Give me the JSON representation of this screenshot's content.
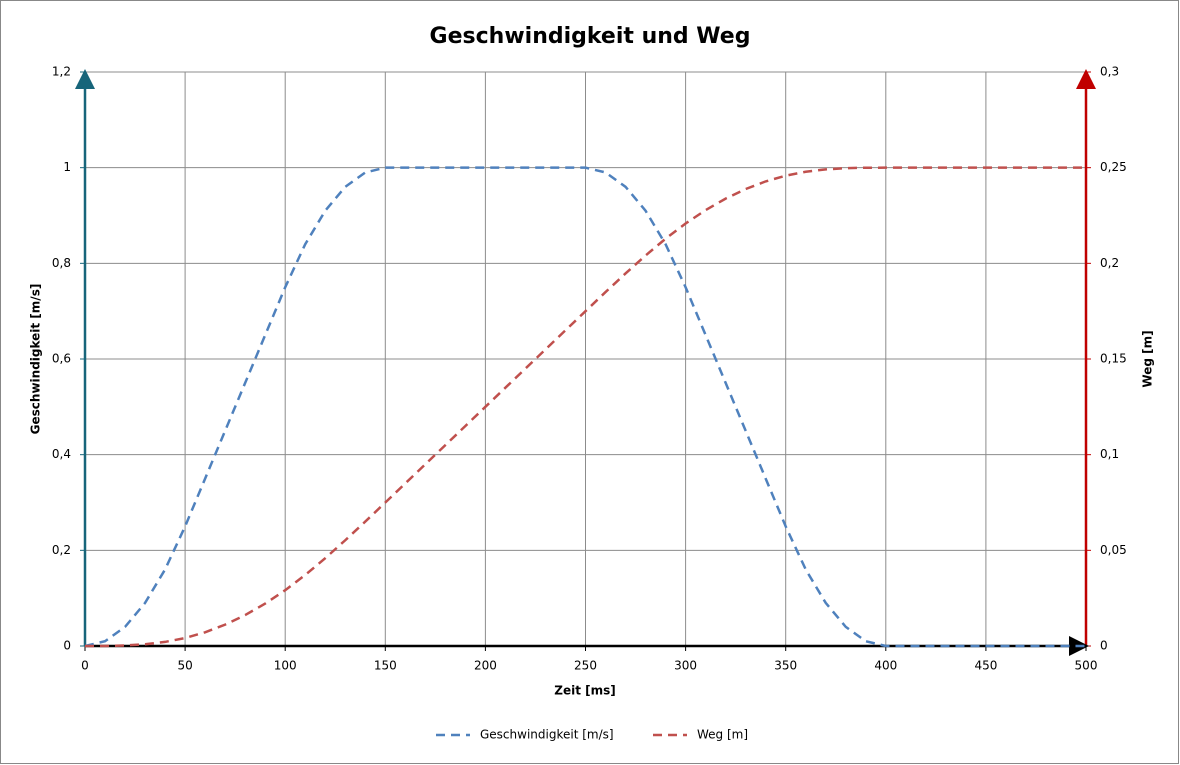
{
  "chart_data": {
    "type": "line",
    "title": "Geschwindigkeit und Weg",
    "x_label": "Zeit [ms]",
    "y_label": "Geschwindigkeit [m/s]",
    "y2_label": "Weg [m]",
    "x": [
      0,
      10,
      20,
      30,
      40,
      50,
      60,
      70,
      80,
      90,
      100,
      110,
      120,
      130,
      140,
      150,
      160,
      170,
      180,
      190,
      200,
      210,
      220,
      230,
      240,
      250,
      260,
      270,
      280,
      290,
      300,
      310,
      320,
      330,
      340,
      350,
      360,
      370,
      380,
      390,
      400,
      410,
      420,
      430,
      440,
      450,
      460,
      470,
      480,
      490,
      500
    ],
    "series": [
      {
        "name": "Geschwindigkeit [m/s]",
        "color": "#4f81bd",
        "values": [
          0,
          0.01,
          0.04,
          0.09,
          0.16,
          0.25,
          0.35,
          0.45,
          0.55,
          0.65,
          0.75,
          0.84,
          0.91,
          0.96,
          0.99,
          1,
          1,
          1,
          1,
          1,
          1,
          1,
          1,
          1,
          1,
          1,
          0.99,
          0.96,
          0.91,
          0.84,
          0.75,
          0.65,
          0.55,
          0.45,
          0.35,
          0.25,
          0.16,
          0.09,
          0.04,
          0.01,
          0,
          0,
          0,
          0,
          0,
          0,
          0,
          0,
          0,
          0,
          0
        ]
      },
      {
        "name": "Weg [m]",
        "color": "#c0504d",
        "axis": "y2",
        "values": [
          0,
          3e-05,
          0.00027,
          0.0009,
          0.00213,
          0.00417,
          0.00717,
          0.01117,
          0.01617,
          0.02217,
          0.02917,
          0.03713,
          0.0459,
          0.05527,
          0.06503,
          0.075,
          0.085,
          0.095,
          0.105,
          0.115,
          0.125,
          0.135,
          0.145,
          0.155,
          0.165,
          0.175,
          0.18497,
          0.19473,
          0.2041,
          0.21287,
          0.22083,
          0.22783,
          0.23383,
          0.23883,
          0.24283,
          0.24583,
          0.24787,
          0.2491,
          0.24973,
          0.24997,
          0.25,
          0.25,
          0.25,
          0.25,
          0.25,
          0.25,
          0.25,
          0.25,
          0.25,
          0.25,
          0.25
        ]
      }
    ],
    "xlim": [
      0,
      500
    ],
    "xticks": [
      0,
      50,
      100,
      150,
      200,
      250,
      300,
      350,
      400,
      450,
      500
    ],
    "ylim": [
      0,
      1.2
    ],
    "yticks": [
      0,
      {
        "value": 0.2,
        "label": "0,2"
      },
      {
        "value": 0.4,
        "label": "0,4"
      },
      {
        "value": 0.6,
        "label": "0,6"
      },
      {
        "value": 0.8,
        "label": "0,8"
      },
      1,
      {
        "value": 1.2,
        "label": "1,2"
      }
    ],
    "y2lim": [
      0,
      0.3
    ],
    "y2ticks": [
      0,
      {
        "value": 0.05,
        "label": "0,05"
      },
      {
        "value": 0.1,
        "label": "0,1"
      },
      {
        "value": 0.15,
        "label": "0,15"
      },
      {
        "value": 0.2,
        "label": "0,2"
      },
      {
        "value": 0.25,
        "label": "0,25"
      },
      {
        "value": 0.3,
        "label": "0,3"
      }
    ],
    "grid": true,
    "legend": "bottom"
  }
}
